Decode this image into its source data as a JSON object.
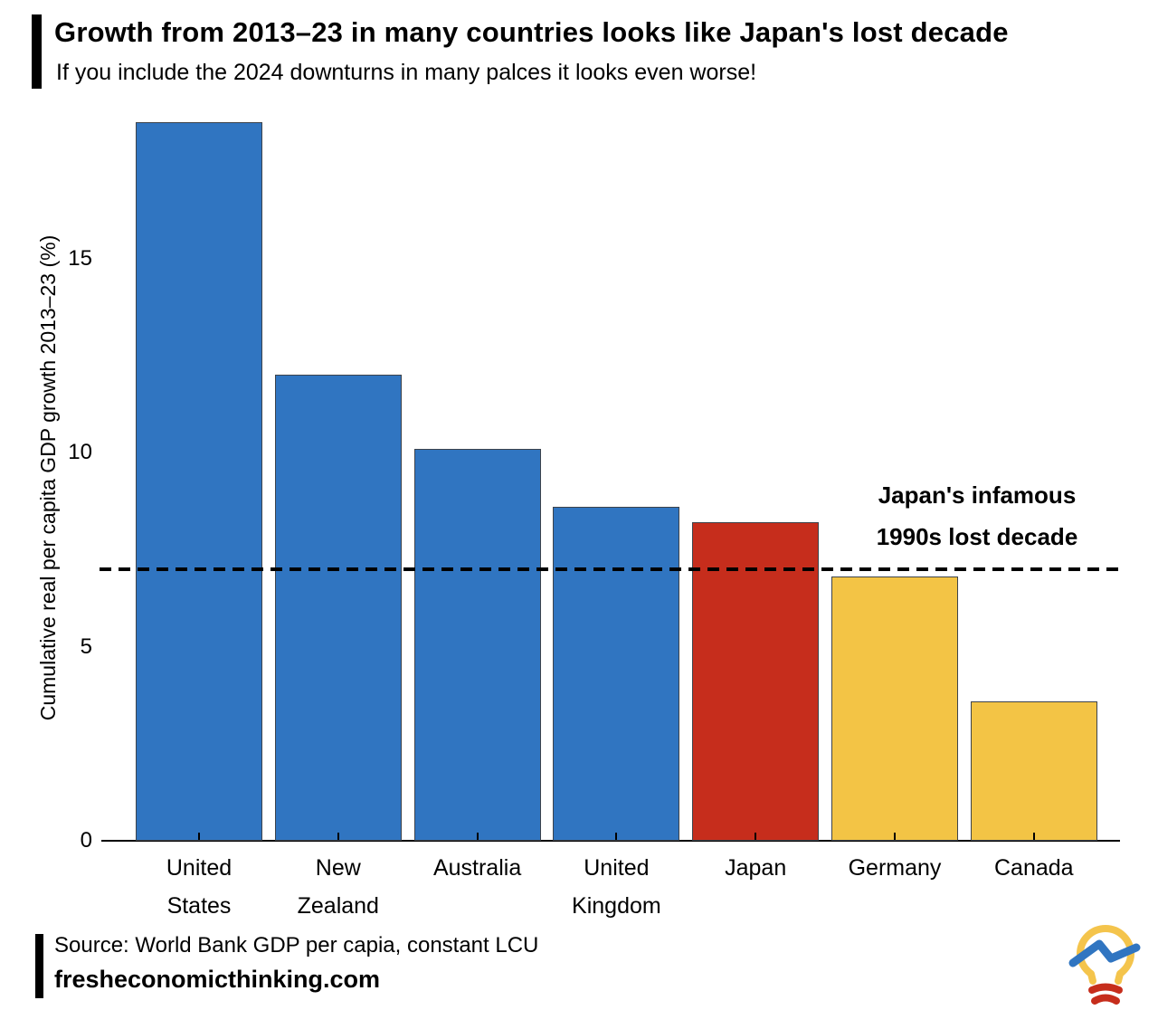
{
  "header": {
    "title": "Growth from 2013–23 in many countries looks like Japan's lost decade",
    "subtitle": "If you include the 2024 downturns in many palces it looks even worse!"
  },
  "chart_data": {
    "type": "bar",
    "title": "Growth from 2013–23 in many countries looks like Japan's lost decade",
    "subtitle": "If you include the 2024 downturns in many palces it looks even worse!",
    "categories": [
      "United States",
      "New Zealand",
      "Australia",
      "United Kingdom",
      "Japan",
      "Germany",
      "Canada"
    ],
    "values": [
      18.5,
      12.0,
      10.1,
      8.6,
      8.2,
      6.8,
      3.6
    ],
    "bar_colors": [
      "#3075c1",
      "#3075c1",
      "#3075c1",
      "#3075c1",
      "#c62d1c",
      "#f3c445",
      "#f3c445"
    ],
    "xlabel": "",
    "ylabel": "Cumulative real per capita GDP growth 2013–23 (%)",
    "yticks": [
      "0",
      "5",
      "10",
      "15"
    ],
    "ylim": [
      0,
      19
    ],
    "grid": false,
    "legend": "none",
    "reference_line": {
      "value": 7.0,
      "style": "dashed",
      "color": "#000000"
    },
    "annotation": {
      "lines": [
        "Japan's infamous",
        "1990s lost decade"
      ]
    }
  },
  "footer": {
    "source": "Source: World Bank GDP per capia, constant LCU",
    "site": "fresheconomicthinking.com"
  },
  "logo": {
    "name": "fresh-economic-thinking-lightbulb-logo",
    "bulb_color": "#f4c44c",
    "line_color": "#3075c1",
    "base_color": "#c62d1c"
  }
}
